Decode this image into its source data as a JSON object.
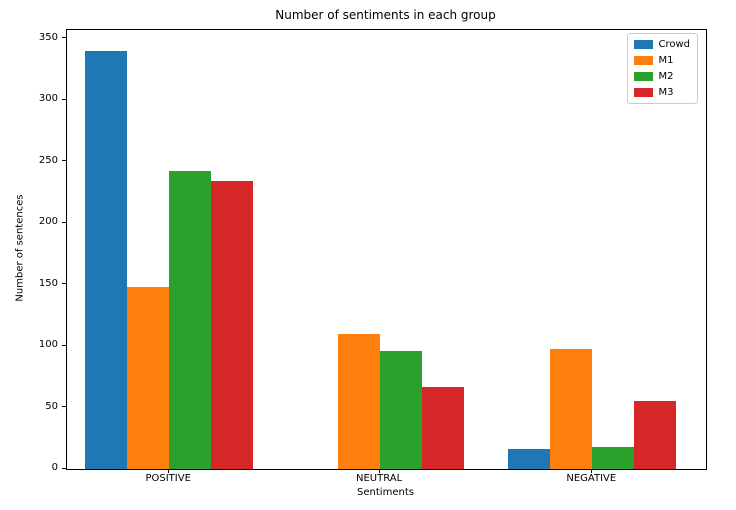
{
  "chart_data": {
    "type": "bar",
    "title": "Number of sentiments in each group",
    "xlabel": "Sentiments",
    "ylabel": "Number of sentences",
    "categories": [
      "POSITIVE",
      "NEUTRAL",
      "NEGATIVE"
    ],
    "series": [
      {
        "name": "Crowd",
        "color": "#1f77b4",
        "values": [
          340,
          0,
          16
        ]
      },
      {
        "name": "M1",
        "color": "#ff7f0e",
        "values": [
          148,
          110,
          98
        ]
      },
      {
        "name": "M2",
        "color": "#2ca02c",
        "values": [
          242,
          96,
          18
        ]
      },
      {
        "name": "M3",
        "color": "#d62728",
        "values": [
          234,
          67,
          55
        ]
      }
    ],
    "ylim": [
      0,
      357
    ],
    "yticks": [
      0,
      50,
      100,
      150,
      200,
      250,
      300,
      350
    ],
    "legend_position": "upper right",
    "grid": false
  }
}
